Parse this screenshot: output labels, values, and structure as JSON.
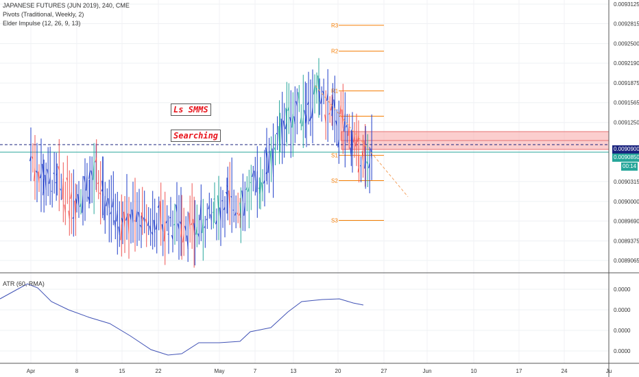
{
  "header": {
    "title": "JAPANESE FUTURES (JUN 2019), 240, CME",
    "pivots_label": "Pivots (Traditional, Weekly, 2)",
    "elder_label": "Elder Impulse (12, 26, 9, 13)"
  },
  "indicator": {
    "label": "ATR (60, RMA)"
  },
  "annotations": {
    "note1": "Ls SMMS",
    "note2": "Searching"
  },
  "price_axis": {
    "ticks": [
      "0.0093125",
      "0.0092815",
      "0.0092500",
      "0.0092190",
      "0.0091875",
      "0.0091565",
      "0.0091250",
      "0.0090900",
      "0.0090850",
      "0.0090315",
      "0.0090000",
      "0.0089690",
      "0.0089375",
      "0.0089065"
    ],
    "current_price": "0.0090900",
    "second_price": "0.0090850",
    "countdown": "00:14"
  },
  "atr_axis": {
    "ticks": [
      "0.0000",
      "0.0000",
      "0.0000",
      "0.0000"
    ]
  },
  "time_axis": {
    "labels": [
      "Apr",
      "8",
      "15",
      "22",
      "May",
      "7",
      "13",
      "20",
      "27",
      "Jun",
      "10",
      "17",
      "24",
      "Ju"
    ]
  },
  "pivot_labels": [
    "R3",
    "R2",
    "R1",
    "S1",
    "S2",
    "S3"
  ],
  "colors": {
    "bull": "#26a69a",
    "bear": "#ef5350",
    "neutral": "#1e3cc8",
    "pivot": "#f57c00",
    "current_line": "#1a237e",
    "zone": "#f8a5a5",
    "atr_line": "#3f51b5"
  },
  "chart_data": {
    "type": "line",
    "title": "JAPANESE FUTURES (JUN 2019), 240, CME",
    "ylim": [
      0.0089065,
      0.0093125
    ],
    "price_path": [
      {
        "x": "Mar 29",
        "y": 0.009105
      },
      {
        "x": "Apr 1",
        "y": 0.009075
      },
      {
        "x": "Apr 3",
        "y": 0.009035
      },
      {
        "x": "Apr 5",
        "y": 0.009025
      },
      {
        "x": "Apr 8",
        "y": 0.009005
      },
      {
        "x": "Apr 10",
        "y": 0.00903
      },
      {
        "x": "Apr 11",
        "y": 0.00904
      },
      {
        "x": "Apr 12",
        "y": 0.009005
      },
      {
        "x": "Apr 15",
        "y": 0.008975
      },
      {
        "x": "Apr 18",
        "y": 0.008968
      },
      {
        "x": "Apr 22",
        "y": 0.008965
      },
      {
        "x": "Apr 24",
        "y": 0.00897
      },
      {
        "x": "Apr 26",
        "y": 0.008955
      },
      {
        "x": "Apr 29",
        "y": 0.00898
      },
      {
        "x": "May 1",
        "y": 0.009
      },
      {
        "x": "May 3",
        "y": 0.008995
      },
      {
        "x": "May 6",
        "y": 0.00903
      },
      {
        "x": "May 7",
        "y": 0.00906
      },
      {
        "x": "May 9",
        "y": 0.0091
      },
      {
        "x": "May 10",
        "y": 0.00913
      },
      {
        "x": "May 13",
        "y": 0.009155
      },
      {
        "x": "May 15",
        "y": 0.009165
      },
      {
        "x": "May 17",
        "y": 0.009135
      },
      {
        "x": "May 20",
        "y": 0.0091
      },
      {
        "x": "May 21",
        "y": 0.00907
      },
      {
        "x": "May 22",
        "y": 0.00906
      },
      {
        "x": "May 23",
        "y": 0.00907
      }
    ],
    "pivots": [
      {
        "label": "R3",
        "value": 0.009279
      },
      {
        "label": "R2",
        "value": 0.009238
      },
      {
        "label": "R1",
        "value": 0.009175
      },
      {
        "label": "P",
        "value": 0.009135
      },
      {
        "label": "S1",
        "value": 0.009073
      },
      {
        "label": "S2",
        "value": 0.009033
      },
      {
        "label": "S3",
        "value": 0.00897
      }
    ],
    "current_price": 0.00909,
    "xlabels": [
      "Apr",
      "8",
      "15",
      "22",
      "May",
      "7",
      "13",
      "20",
      "27",
      "Jun",
      "10",
      "17",
      "24",
      "Ju"
    ]
  }
}
